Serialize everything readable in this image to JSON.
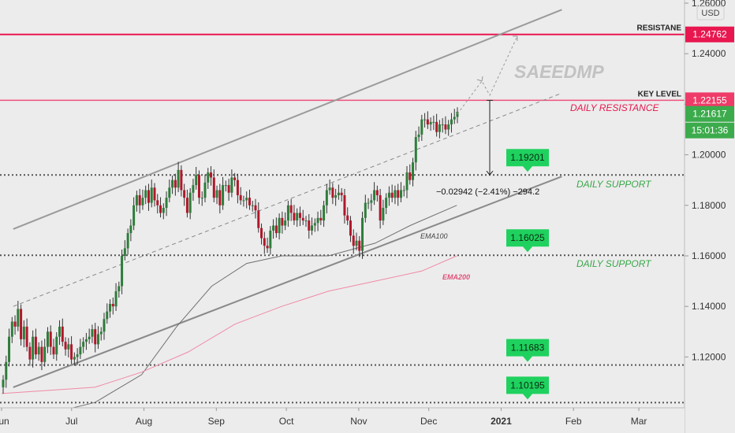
{
  "chart_data": {
    "type": "candlestick",
    "watermark": "SAEEDMP",
    "currency": "USD",
    "y_axis": {
      "ylim": [
        1.1018,
        1.2628
      ],
      "ticks": [
        "1.26000",
        "1.24000",
        "1.22000",
        "1.20000",
        "1.18000",
        "1.16000",
        "1.14000",
        "1.12000"
      ]
    },
    "x_axis": {
      "labels": [
        {
          "label": "Jun",
          "day": 0
        },
        {
          "label": "Jul",
          "day": 30
        },
        {
          "label": "Aug",
          "day": 61
        },
        {
          "label": "Sep",
          "day": 92
        },
        {
          "label": "Oct",
          "day": 122
        },
        {
          "label": "Nov",
          "day": 153
        },
        {
          "label": "Dec",
          "day": 183
        },
        {
          "label": "2021",
          "day": 214
        },
        {
          "label": "Feb",
          "day": 245
        },
        {
          "label": "Mar",
          "day": 273
        }
      ]
    },
    "horizontal_levels": [
      {
        "name": "RESISTANE",
        "value": 1.24762,
        "color": "#e8174f",
        "style": "solid",
        "label_text": "RESISTANE",
        "price_tag": "1.24762"
      },
      {
        "name": "KEY LEVEL",
        "value": 1.22155,
        "color": "#f0507a",
        "style": "solid",
        "label_text": "KEY LEVEL",
        "price_tag": "1.22155"
      },
      {
        "name": "support-1",
        "value": 1.19201,
        "color": "#555555",
        "style": "dotted",
        "flag": "1.19201"
      },
      {
        "name": "support-2",
        "value": 1.16025,
        "color": "#555555",
        "style": "dotted",
        "flag": "1.16025"
      },
      {
        "name": "support-3",
        "value": 1.11683,
        "color": "#555555",
        "style": "dotted",
        "flag": "1.11683"
      },
      {
        "name": "support-4",
        "value": 1.10195,
        "color": "#555555",
        "style": "dotted",
        "flag": "1.10195"
      }
    ],
    "current_price": {
      "value": "1.21617",
      "countdown": "15:01:36",
      "price_num": 1.21617
    },
    "annotations": {
      "daily_resistance": "DAILY RESISTANCE",
      "daily_support_1": "DAILY SUPPORT",
      "daily_support_2": "DAILY SUPPORT",
      "ema100": "EMA100",
      "ema200": "EMA200",
      "measure": "−0.02942 (−2.41%) −294.2"
    },
    "channel": {
      "upper": {
        "from": [
          5,
          1.1706
        ],
        "to": [
          240,
          1.2574
        ]
      },
      "lower": {
        "from": [
          5,
          1.108
        ],
        "to": [
          240,
          1.1914
        ]
      },
      "mid_dashed": {
        "from": [
          5,
          1.14
        ],
        "to": [
          240,
          1.2244
        ]
      }
    },
    "ema100": [
      [
        0,
        1.093
      ],
      [
        40,
        1.102
      ],
      [
        60,
        1.113
      ],
      [
        75,
        1.132
      ],
      [
        90,
        1.148
      ],
      [
        105,
        1.157
      ],
      [
        120,
        1.16
      ],
      [
        140,
        1.16
      ],
      [
        160,
        1.165
      ],
      [
        175,
        1.172
      ],
      [
        195,
        1.18
      ]
    ],
    "ema200": [
      [
        0,
        1.1055
      ],
      [
        40,
        1.108
      ],
      [
        60,
        1.114
      ],
      [
        80,
        1.122
      ],
      [
        100,
        1.133
      ],
      [
        120,
        1.14
      ],
      [
        140,
        1.146
      ],
      [
        160,
        1.15
      ],
      [
        180,
        1.154
      ],
      [
        195,
        1.16
      ]
    ],
    "candles_close": [
      1.111,
      1.118,
      1.128,
      1.134,
      1.132,
      1.139,
      1.127,
      1.132,
      1.124,
      1.119,
      1.128,
      1.121,
      1.124,
      1.118,
      1.124,
      1.13,
      1.124,
      1.121,
      1.128,
      1.132,
      1.126,
      1.123,
      1.125,
      1.119,
      1.12,
      1.121,
      1.124,
      1.126,
      1.127,
      1.128,
      1.131,
      1.125,
      1.129,
      1.13,
      1.135,
      1.138,
      1.141,
      1.14,
      1.146,
      1.148,
      1.16,
      1.163,
      1.169,
      1.172,
      1.18,
      1.184,
      1.18,
      1.183,
      1.186,
      1.181,
      1.187,
      1.182,
      1.18,
      1.177,
      1.179,
      1.183,
      1.187,
      1.19,
      1.187,
      1.194,
      1.186,
      1.183,
      1.177,
      1.185,
      1.188,
      1.192,
      1.183,
      1.183,
      1.189,
      1.193,
      1.191,
      1.183,
      1.186,
      1.18,
      1.188,
      1.188,
      1.185,
      1.191,
      1.19,
      1.184,
      1.182,
      1.182,
      1.183,
      1.18,
      1.18,
      1.178,
      1.171,
      1.167,
      1.164,
      1.163,
      1.17,
      1.172,
      1.169,
      1.175,
      1.172,
      1.174,
      1.18,
      1.177,
      1.174,
      1.177,
      1.175,
      1.174,
      1.174,
      1.17,
      1.172,
      1.173,
      1.175,
      1.174,
      1.18,
      1.186,
      1.187,
      1.183,
      1.184,
      1.185,
      1.184,
      1.176,
      1.174,
      1.168,
      1.164,
      1.166,
      1.162,
      1.175,
      1.181,
      1.181,
      1.182,
      1.186,
      1.184,
      1.174,
      1.179,
      1.183,
      1.185,
      1.183,
      1.186,
      1.183,
      1.186,
      1.186,
      1.193,
      1.19,
      1.197,
      1.207,
      1.208,
      1.214,
      1.214,
      1.212,
      1.213,
      1.213,
      1.209,
      1.212,
      1.212,
      1.21,
      1.212,
      1.214,
      1.215,
      1.217
    ]
  }
}
